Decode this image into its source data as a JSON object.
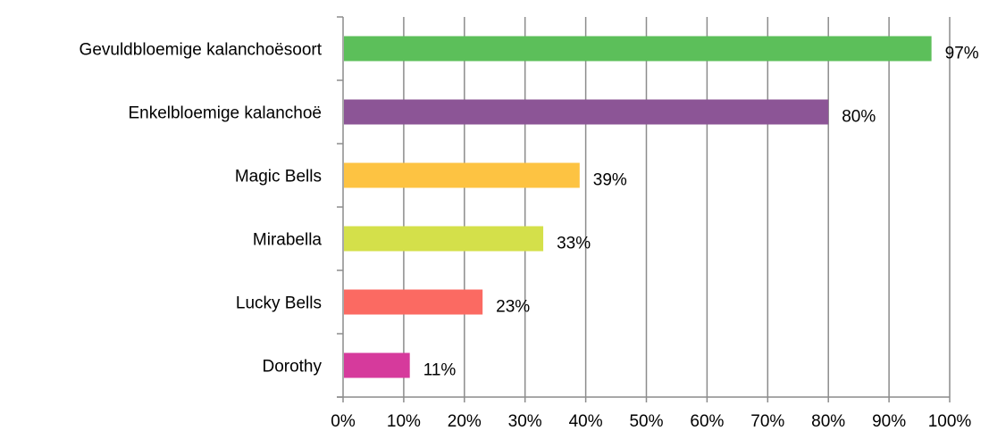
{
  "chart_data": {
    "type": "bar",
    "orientation": "horizontal",
    "categories": [
      "Gevuldbloemige kalanchoësoort",
      "Enkelbloemige kalanchoë",
      "Magic Bells",
      "Mirabella",
      "Lucky Bells",
      "Dorothy"
    ],
    "values": [
      97,
      80,
      39,
      33,
      23,
      11
    ],
    "data_labels": [
      "97%",
      "80%",
      "39%",
      "33%",
      "23%",
      "11%"
    ],
    "bar_colors": [
      "#5cbf5a",
      "#8c5596",
      "#fdc342",
      "#d4e04a",
      "#fb6a62",
      "#d63a9c"
    ],
    "x_ticks": [
      "0%",
      "10%",
      "20%",
      "30%",
      "40%",
      "50%",
      "60%",
      "70%",
      "80%",
      "90%",
      "100%"
    ],
    "xlim": [
      0,
      100
    ],
    "title": "",
    "xlabel": "",
    "ylabel": "",
    "grid": "vertical",
    "legend": "none"
  }
}
